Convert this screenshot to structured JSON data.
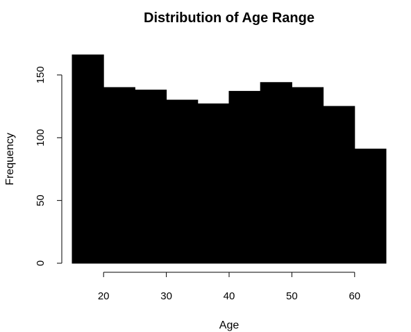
{
  "chart_data": {
    "type": "bar",
    "title": "Distribution of Age Range",
    "xlabel": "Age",
    "ylabel": "Frequency",
    "bins": [
      {
        "from": 15,
        "to": 20,
        "value": 166
      },
      {
        "from": 20,
        "to": 25,
        "value": 140
      },
      {
        "from": 25,
        "to": 30,
        "value": 138
      },
      {
        "from": 30,
        "to": 35,
        "value": 130
      },
      {
        "from": 35,
        "to": 40,
        "value": 127
      },
      {
        "from": 40,
        "to": 45,
        "value": 137
      },
      {
        "from": 45,
        "to": 50,
        "value": 144
      },
      {
        "from": 50,
        "to": 55,
        "value": 140
      },
      {
        "from": 55,
        "to": 60,
        "value": 125
      },
      {
        "from": 60,
        "to": 65,
        "value": 91
      }
    ],
    "xlim": [
      15,
      65
    ],
    "ylim": [
      0,
      166
    ],
    "x_ticks": [
      20,
      30,
      40,
      50,
      60
    ],
    "y_ticks": [
      0,
      50,
      100,
      150
    ],
    "bar_color": "#000000",
    "grid": false,
    "legend": "none"
  }
}
